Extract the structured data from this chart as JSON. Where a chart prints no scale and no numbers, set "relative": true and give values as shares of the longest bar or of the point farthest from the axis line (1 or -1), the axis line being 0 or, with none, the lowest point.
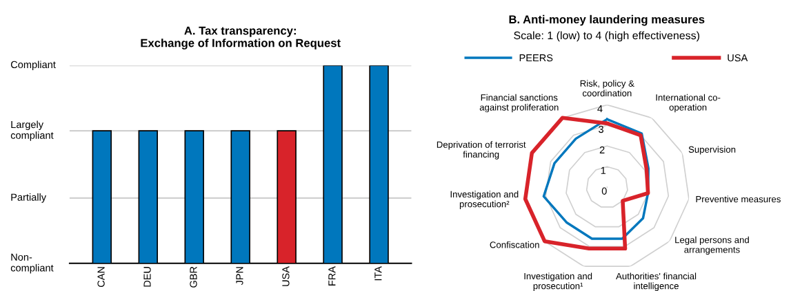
{
  "chart_data": [
    {
      "type": "bar",
      "title": "A. Tax transparency:\nExchange of Information on Request",
      "categories": [
        "CAN",
        "DEU",
        "GBR",
        "JPN",
        "USA",
        "FRA",
        "ITA"
      ],
      "values": [
        0.67,
        0.67,
        0.67,
        0.67,
        0.67,
        1,
        1
      ],
      "relative": true,
      "colors": [
        "#0077bd",
        "#0077bd",
        "#0077bd",
        "#0077bd",
        "#d8232a",
        "#0077bd",
        "#0077bd"
      ],
      "annotations": [
        "Non-\ncompliant"
      ],
      "ref_lines": [
        {
          "axis": "y",
          "value": 0.33,
          "label": "Partially",
          "color": "#d0d0d0"
        },
        {
          "axis": "y",
          "value": 0.67,
          "label": "Largely\ncompliant",
          "color": "#d0d0d0"
        },
        {
          "axis": "y",
          "value": 1,
          "label": "Compliant",
          "color": "#d0d0d0"
        }
      ]
    },
    {
      "type": "radar",
      "title": "B. Anti-money laundering measures",
      "subtitle": "Scale: 1 (low) to 4 (high effectiveness)",
      "categories": [
        "Risk, policy &\ncoordination",
        "International co-\noperation",
        "Supervision",
        "Preventive measures",
        "Legal persons and\narrangements",
        "Authorities' financial\nintelligence",
        "Investigation and\nprosecution¹",
        "Confiscation",
        "Investigation and\nprosecution²",
        "Deprivation of terrorist\nfinancing",
        "Financial sanctions\nagainst proliferation"
      ],
      "series": [
        {
          "name": "PEERS",
          "color": "#0077bd",
          "values": [
            3.3,
            3.1,
            2.2,
            2.0,
            2.3,
            2.6,
            2.6,
            2.6,
            3.1,
            2.8,
            2.8
          ]
        },
        {
          "name": "USA",
          "color": "#d8232a",
          "values": [
            3.1,
            3.0,
            2.1,
            2.0,
            1.0,
            3.1,
            3.1,
            4.0,
            4.0,
            4.0,
            4.0
          ]
        }
      ],
      "ylim": [
        0,
        4
      ],
      "yticks": [
        0,
        1,
        2,
        3,
        4
      ],
      "grid": true,
      "legend": "top"
    }
  ]
}
